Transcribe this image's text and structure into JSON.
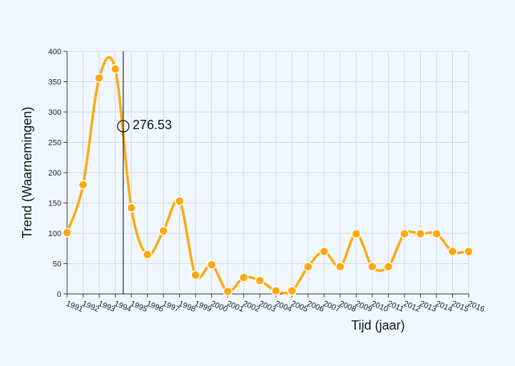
{
  "chart_data": {
    "type": "line",
    "xlabel": "Tijd (jaar)",
    "ylabel": "Trend (Waarnemingen)",
    "ylim": [
      0,
      400
    ],
    "yticks": [
      0,
      50,
      100,
      150,
      200,
      250,
      300,
      350,
      400
    ],
    "xlim": [
      1991,
      2016
    ],
    "grid": true,
    "colors": {
      "series": "#ffa90f",
      "point": "#ffa90f"
    },
    "series": [
      {
        "x": [
          1991,
          1992,
          1993,
          1994,
          1995,
          1996,
          1997,
          1998,
          1999,
          2000,
          2001,
          2002,
          2003,
          2004,
          2005,
          2006,
          2007,
          2008,
          2009,
          2010,
          2011,
          2012,
          2013,
          2014,
          2015,
          2016
        ],
        "values": [
          101,
          180,
          356,
          371,
          142,
          65,
          104,
          153,
          31,
          48,
          4,
          27,
          22,
          5,
          5,
          45,
          70,
          45,
          99,
          45,
          45,
          99,
          99,
          99,
          70,
          70
        ]
      }
    ],
    "cursor": {
      "x": 1994.5,
      "y": 276.53,
      "label": "276.53"
    }
  }
}
